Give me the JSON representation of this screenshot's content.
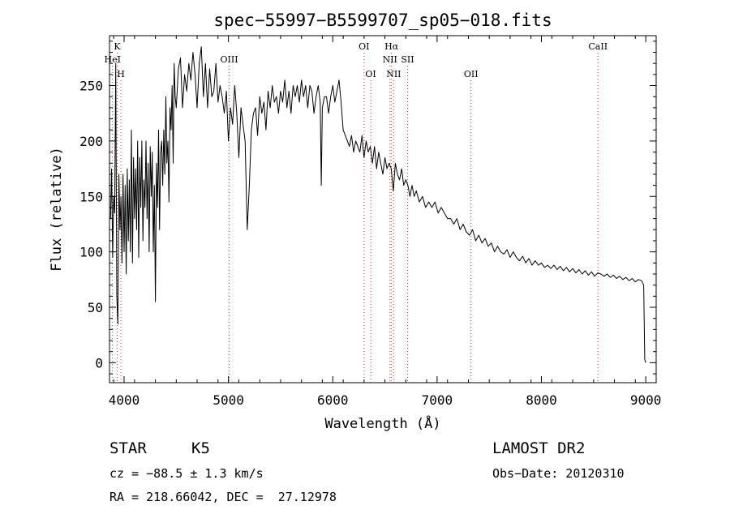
{
  "chart_data": {
    "type": "line",
    "title": "spec−55997−B5599707_sp05−018.fits",
    "xlabel": "Wavelength (Å)",
    "ylabel": "Flux (relative)",
    "xlim": [
      3860,
      9100
    ],
    "ylim": [
      -18,
      295
    ],
    "xticks": [
      4000,
      5000,
      6000,
      7000,
      8000,
      9000
    ],
    "yticks": [
      0,
      50,
      100,
      150,
      200,
      250
    ],
    "grid": false,
    "line_color": "#000000",
    "marker_color": "#c0392b",
    "series": [
      {
        "x": [
          3870,
          3880,
          3890,
          3900,
          3910,
          3920,
          3930,
          3940,
          3950,
          3960,
          3970,
          3980,
          3990,
          4000,
          4010,
          4020,
          4030,
          4040,
          4050,
          4060,
          4070,
          4080,
          4090,
          4100,
          4110,
          4120,
          4130,
          4140,
          4150,
          4160,
          4170,
          4180,
          4190,
          4200,
          4210,
          4220,
          4230,
          4240,
          4250,
          4260,
          4270,
          4280,
          4290,
          4300,
          4310,
          4320,
          4330,
          4340,
          4350,
          4360,
          4370,
          4380,
          4390,
          4400,
          4410,
          4420,
          4430,
          4440,
          4450,
          4460,
          4470,
          4480,
          4490,
          4500,
          4520,
          4540,
          4560,
          4580,
          4600,
          4620,
          4640,
          4660,
          4680,
          4700,
          4720,
          4740,
          4760,
          4780,
          4800,
          4820,
          4840,
          4860,
          4880,
          4900,
          4920,
          4940,
          4960,
          4980,
          5000,
          5020,
          5040,
          5060,
          5080,
          5100,
          5120,
          5140,
          5160,
          5180,
          5200,
          5220,
          5240,
          5260,
          5280,
          5300,
          5320,
          5340,
          5360,
          5380,
          5400,
          5420,
          5440,
          5460,
          5480,
          5500,
          5520,
          5540,
          5560,
          5580,
          5600,
          5620,
          5640,
          5660,
          5680,
          5700,
          5720,
          5740,
          5760,
          5780,
          5800,
          5820,
          5840,
          5860,
          5880,
          5890,
          5900,
          5920,
          5940,
          5960,
          5980,
          6000,
          6020,
          6040,
          6060,
          6080,
          6100,
          6120,
          6140,
          6160,
          6180,
          6200,
          6220,
          6240,
          6260,
          6280,
          6300,
          6320,
          6340,
          6360,
          6380,
          6400,
          6420,
          6440,
          6460,
          6480,
          6500,
          6520,
          6540,
          6560,
          6580,
          6600,
          6620,
          6640,
          6660,
          6680,
          6700,
          6720,
          6740,
          6760,
          6780,
          6800,
          6830,
          6860,
          6890,
          6920,
          6950,
          6980,
          7010,
          7040,
          7070,
          7100,
          7130,
          7160,
          7190,
          7220,
          7250,
          7280,
          7310,
          7340,
          7370,
          7400,
          7430,
          7460,
          7490,
          7520,
          7550,
          7580,
          7610,
          7640,
          7670,
          7700,
          7730,
          7760,
          7790,
          7820,
          7850,
          7880,
          7910,
          7940,
          7970,
          8000,
          8030,
          8060,
          8090,
          8120,
          8150,
          8180,
          8210,
          8240,
          8270,
          8300,
          8330,
          8360,
          8390,
          8420,
          8450,
          8480,
          8510,
          8540,
          8570,
          8600,
          8630,
          8660,
          8690,
          8720,
          8750,
          8780,
          8810,
          8840,
          8870,
          8900,
          8930,
          8960,
          8980,
          8990,
          9000
        ],
        "y": [
          130,
          175,
          95,
          150,
          135,
          270,
          60,
          35,
          170,
          120,
          150,
          90,
          170,
          100,
          160,
          80,
          175,
          110,
          165,
          100,
          210,
          90,
          185,
          130,
          175,
          120,
          200,
          95,
          185,
          140,
          200,
          110,
          165,
          140,
          200,
          130,
          180,
          100,
          195,
          150,
          190,
          100,
          160,
          55,
          180,
          140,
          210,
          120,
          190,
          200,
          160,
          210,
          170,
          240,
          180,
          200,
          145,
          230,
          210,
          250,
          180,
          270,
          240,
          230,
          265,
          275,
          230,
          260,
          245,
          270,
          255,
          280,
          260,
          230,
          270,
          285,
          240,
          270,
          230,
          265,
          240,
          245,
          270,
          235,
          250,
          240,
          225,
          245,
          200,
          230,
          215,
          250,
          225,
          185,
          230,
          215,
          200,
          120,
          160,
          210,
          225,
          230,
          205,
          240,
          225,
          235,
          210,
          245,
          230,
          250,
          235,
          240,
          225,
          245,
          235,
          255,
          230,
          245,
          225,
          250,
          240,
          250,
          235,
          255,
          240,
          250,
          230,
          250,
          245,
          225,
          240,
          250,
          235,
          160,
          230,
          240,
          240,
          225,
          240,
          250,
          235,
          245,
          255,
          235,
          210,
          205,
          200,
          195,
          205,
          190,
          200,
          195,
          190,
          205,
          185,
          200,
          190,
          195,
          180,
          195,
          175,
          190,
          180,
          170,
          185,
          175,
          180,
          175,
          155,
          180,
          170,
          165,
          175,
          160,
          165,
          160,
          150,
          160,
          150,
          155,
          145,
          150,
          140,
          145,
          140,
          145,
          135,
          140,
          135,
          130,
          130,
          125,
          130,
          120,
          125,
          118,
          115,
          120,
          110,
          115,
          108,
          112,
          105,
          108,
          100,
          105,
          100,
          98,
          102,
          95,
          100,
          95,
          92,
          96,
          90,
          94,
          88,
          92,
          88,
          90,
          86,
          88,
          85,
          88,
          84,
          87,
          83,
          86,
          82,
          85,
          81,
          84,
          80,
          83,
          79,
          82,
          78,
          81,
          80,
          78,
          80,
          77,
          79,
          76,
          78,
          75,
          77,
          74,
          76,
          73,
          75,
          74,
          70,
          3,
          0
        ]
      }
    ],
    "lines": [
      {
        "label": "K",
        "x": 3934,
        "row": 1
      },
      {
        "label": "HeI",
        "x": 3889,
        "row": 2
      },
      {
        "label": "H",
        "x": 3969,
        "row": 3
      },
      {
        "label": "OIII",
        "x": 5007,
        "row": 2
      },
      {
        "label": "OI",
        "x": 6300,
        "row": 1
      },
      {
        "label": "OI",
        "x": 6364,
        "row": 3
      },
      {
        "label": "Hα",
        "x": 6563,
        "row": 1
      },
      {
        "label": "NII",
        "x": 6548,
        "row": 2
      },
      {
        "label": "SII",
        "x": 6717,
        "row": 2
      },
      {
        "label": "NII",
        "x": 6584,
        "row": 3
      },
      {
        "label": "OII",
        "x": 7325,
        "row": 3
      },
      {
        "label": "CaII",
        "x": 8542,
        "row": 1
      }
    ]
  },
  "info": {
    "class": "STAR",
    "subclass": "K5",
    "survey": "LAMOST DR2",
    "cz": "cz = −88.5 ± 1.3 km/s",
    "obsdate": "Obs−Date: 20120310",
    "radec": "RA = 218.66042, DEC =  27.12978"
  }
}
